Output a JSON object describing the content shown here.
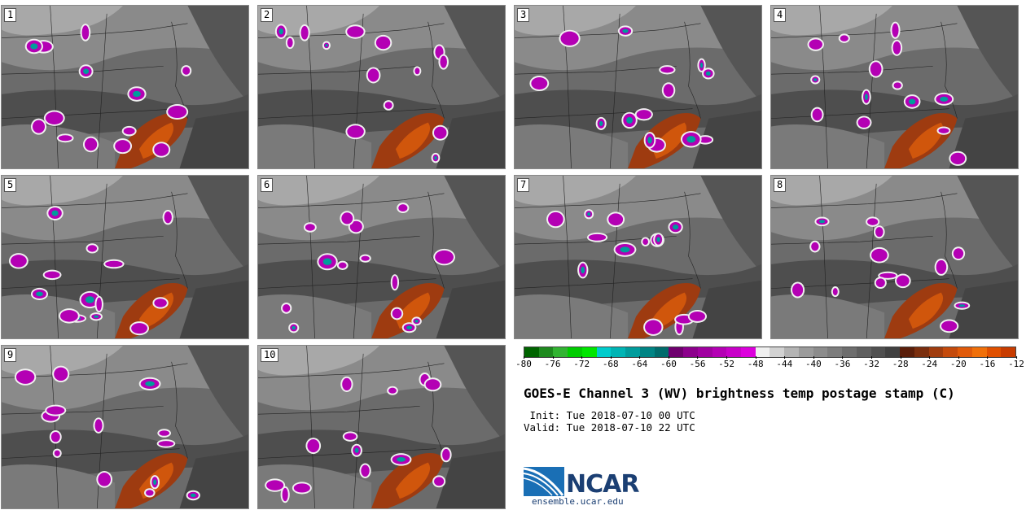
{
  "panels": [
    {
      "label": "1"
    },
    {
      "label": "2"
    },
    {
      "label": "3"
    },
    {
      "label": "4"
    },
    {
      "label": "5"
    },
    {
      "label": "6"
    },
    {
      "label": "7"
    },
    {
      "label": "8"
    },
    {
      "label": "9"
    },
    {
      "label": "10"
    }
  ],
  "colorbar": {
    "colors": [
      "#006400",
      "#1e8a1e",
      "#32b432",
      "#00cc00",
      "#00e600",
      "#00cccc",
      "#00b4b4",
      "#009c9c",
      "#008484",
      "#006c6c",
      "#6e006e",
      "#8c008c",
      "#a000a0",
      "#b400b4",
      "#c800c8",
      "#dc00dc",
      "#f0f0f0",
      "#d2d2d2",
      "#b4b4b4",
      "#9b9b9b",
      "#8c8c8c",
      "#7d7d7d",
      "#6e6e6e",
      "#5f5f5f",
      "#505050",
      "#414141",
      "#5a1e0a",
      "#7a2e0e",
      "#a03c0e",
      "#c44a0c",
      "#e05a0a",
      "#f0700a",
      "#e05000",
      "#c83c00"
    ],
    "tick_labels": [
      "-80",
      "-76",
      "-72",
      "-68",
      "-64",
      "-60",
      "-56",
      "-52",
      "-48",
      "-44",
      "-40",
      "-36",
      "-32",
      "-28",
      "-24",
      "-20",
      "-16",
      "-12"
    ]
  },
  "title": "GOES-E Channel 3 (WV) brightness temp postage stamp (C)",
  "init_label": " Init: Tue 2018-07-10 00 UTC",
  "valid_label": "Valid: Tue 2018-07-10 22 UTC",
  "logo": {
    "text": "NCAR",
    "url": "ensemble.ucar.edu"
  }
}
